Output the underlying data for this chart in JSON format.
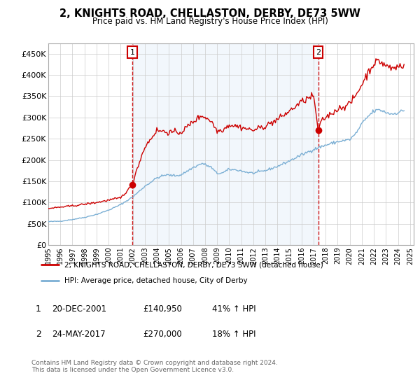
{
  "title": "2, KNIGHTS ROAD, CHELLASTON, DERBY, DE73 5WW",
  "subtitle": "Price paid vs. HM Land Registry's House Price Index (HPI)",
  "legend_line1": "2, KNIGHTS ROAD, CHELLASTON, DERBY, DE73 5WW (detached house)",
  "legend_line2": "HPI: Average price, detached house, City of Derby",
  "sale1_date": "20-DEC-2001",
  "sale1_price": "£140,950",
  "sale1_hpi": "41% ↑ HPI",
  "sale2_date": "24-MAY-2017",
  "sale2_price": "£270,000",
  "sale2_hpi": "18% ↑ HPI",
  "footnote": "Contains HM Land Registry data © Crown copyright and database right 2024.\nThis data is licensed under the Open Government Licence v3.0.",
  "price_color": "#cc0000",
  "hpi_color": "#7bafd4",
  "vline_color": "#cc0000",
  "shade_color": "#ddeeff",
  "background_color": "#ffffff",
  "grid_color": "#cccccc",
  "sale1_x_year": 2001.97,
  "sale1_y": 140950,
  "sale2_x_year": 2017.38,
  "sale2_y": 270000,
  "ylim": [
    0,
    475000
  ],
  "xlim_left": 1995.0,
  "xlim_right": 2025.3
}
